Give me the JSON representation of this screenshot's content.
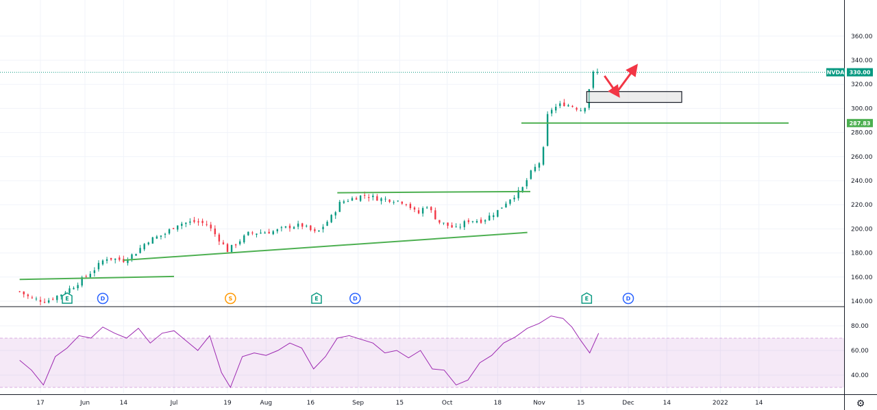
{
  "chart_data": [
    {
      "type": "candlestick",
      "symbol": "NVDA",
      "last_price_label": "330.00",
      "level_label": "287.83",
      "ylim": [
        136,
        390
      ],
      "price_ticks": [
        140,
        160,
        180,
        200,
        220,
        240,
        260,
        280,
        300,
        320,
        340,
        360
      ],
      "price_tick_labels": [
        "140.00",
        "160.00",
        "180.00",
        "200.00",
        "220.00",
        "240.00",
        "260.00",
        "280.00",
        "300.00",
        "320.00",
        "340.00",
        "360.00"
      ],
      "x_labels": [
        "17",
        "Jun",
        "14",
        "Jul",
        "19",
        "Aug",
        "16",
        "Sep",
        "15",
        "Oct",
        "18",
        "Nov",
        "15",
        "Dec",
        "14",
        "2022",
        "14"
      ],
      "close_path": [
        [
          "2021-05-10",
          148
        ],
        [
          "2021-05-14",
          142
        ],
        [
          "2021-05-19",
          140
        ],
        [
          "2021-05-24",
          146
        ],
        [
          "2021-05-28",
          152
        ],
        [
          "2021-06-01",
          160
        ],
        [
          "2021-06-04",
          166
        ],
        [
          "2021-06-08",
          176
        ],
        [
          "2021-06-14",
          174
        ],
        [
          "2021-06-18",
          180
        ],
        [
          "2021-06-22",
          190
        ],
        [
          "2021-06-28",
          196
        ],
        [
          "2021-07-02",
          204
        ],
        [
          "2021-07-08",
          206
        ],
        [
          "2021-07-12",
          204
        ],
        [
          "2021-07-16",
          192
        ],
        [
          "2021-07-19",
          182
        ],
        [
          "2021-07-22",
          188
        ],
        [
          "2021-07-26",
          196
        ],
        [
          "2021-07-30",
          197
        ],
        [
          "2021-08-04",
          198
        ],
        [
          "2021-08-09",
          202
        ],
        [
          "2021-08-13",
          203
        ],
        [
          "2021-08-18",
          196
        ],
        [
          "2021-08-23",
          210
        ],
        [
          "2021-08-26",
          222
        ],
        [
          "2021-08-31",
          226
        ],
        [
          "2021-09-03",
          228
        ],
        [
          "2021-09-08",
          225
        ],
        [
          "2021-09-13",
          224
        ],
        [
          "2021-09-17",
          222
        ],
        [
          "2021-09-21",
          212
        ],
        [
          "2021-09-24",
          220
        ],
        [
          "2021-09-28",
          206
        ],
        [
          "2021-10-04",
          200
        ],
        [
          "2021-10-08",
          207
        ],
        [
          "2021-10-13",
          207
        ],
        [
          "2021-10-18",
          215
        ],
        [
          "2021-10-22",
          225
        ],
        [
          "2021-10-26",
          232
        ],
        [
          "2021-10-29",
          246
        ],
        [
          "2021-11-02",
          258
        ],
        [
          "2021-11-04",
          298
        ],
        [
          "2021-11-09",
          304
        ],
        [
          "2021-11-12",
          302
        ],
        [
          "2021-11-16",
          298
        ],
        [
          "2021-11-19",
          329
        ],
        [
          "2021-11-21",
          330
        ]
      ],
      "trendlines": [
        {
          "from": [
            "2021-05-10",
            158
          ],
          "to": [
            "2021-07-01",
            160.5
          ],
          "color": "#4caf50"
        },
        {
          "from": [
            "2021-06-14",
            174
          ],
          "to": [
            "2021-10-28",
            197
          ],
          "color": "#4caf50"
        },
        {
          "from": [
            "2021-08-25",
            230
          ],
          "to": [
            "2021-10-29",
            231
          ],
          "color": "#4caf50"
        },
        {
          "from": [
            "2021-10-26",
            287.83
          ],
          "to": [
            "2022-01-24",
            287.83
          ],
          "color": "#4caf50"
        }
      ],
      "zone": {
        "from": "2021-11-17",
        "to": "2021-12-19",
        "low": 305,
        "high": 314
      },
      "arrows": [
        {
          "from": [
            "2021-11-23",
            327
          ],
          "to": [
            "2021-11-27",
            313
          ],
          "color": "#f23645"
        },
        {
          "from": [
            "2021-11-27",
            313
          ],
          "to": [
            "2021-12-03",
            333
          ],
          "color": "#f23645"
        }
      ],
      "events": [
        {
          "label": "E",
          "date": "2021-05-26",
          "color": "#089981"
        },
        {
          "label": "D",
          "date": "2021-06-07",
          "color": "#2962ff"
        },
        {
          "label": "S",
          "date": "2021-07-20",
          "color": "#ff9800"
        },
        {
          "label": "E",
          "date": "2021-08-18",
          "color": "#089981"
        },
        {
          "label": "D",
          "date": "2021-08-31",
          "color": "#2962ff"
        },
        {
          "label": "E",
          "date": "2021-11-17",
          "color": "#089981"
        },
        {
          "label": "D",
          "date": "2021-12-01",
          "color": "#2962ff"
        }
      ]
    },
    {
      "type": "line",
      "indicator": "RSI",
      "ylim": [
        25,
        95
      ],
      "y_ticks": [
        40,
        60,
        80
      ],
      "y_tick_labels": [
        "40.00",
        "60.00",
        "80.00"
      ],
      "band": [
        30,
        70
      ],
      "color": "#9c27b0",
      "values": [
        [
          "2021-05-10",
          52
        ],
        [
          "2021-05-14",
          44
        ],
        [
          "2021-05-18",
          32
        ],
        [
          "2021-05-22",
          55
        ],
        [
          "2021-05-26",
          62
        ],
        [
          "2021-05-30",
          72
        ],
        [
          "2021-06-03",
          70
        ],
        [
          "2021-06-07",
          79
        ],
        [
          "2021-06-11",
          74
        ],
        [
          "2021-06-15",
          70
        ],
        [
          "2021-06-19",
          78
        ],
        [
          "2021-06-23",
          66
        ],
        [
          "2021-06-27",
          74
        ],
        [
          "2021-07-01",
          76
        ],
        [
          "2021-07-05",
          68
        ],
        [
          "2021-07-09",
          60
        ],
        [
          "2021-07-13",
          72
        ],
        [
          "2021-07-17",
          42
        ],
        [
          "2021-07-20",
          30
        ],
        [
          "2021-07-24",
          55
        ],
        [
          "2021-07-28",
          58
        ],
        [
          "2021-08-01",
          56
        ],
        [
          "2021-08-05",
          60
        ],
        [
          "2021-08-09",
          66
        ],
        [
          "2021-08-13",
          62
        ],
        [
          "2021-08-17",
          45
        ],
        [
          "2021-08-21",
          55
        ],
        [
          "2021-08-25",
          70
        ],
        [
          "2021-08-29",
          72
        ],
        [
          "2021-09-02",
          69
        ],
        [
          "2021-09-06",
          66
        ],
        [
          "2021-09-10",
          58
        ],
        [
          "2021-09-14",
          60
        ],
        [
          "2021-09-18",
          54
        ],
        [
          "2021-09-22",
          60
        ],
        [
          "2021-09-26",
          45
        ],
        [
          "2021-09-30",
          44
        ],
        [
          "2021-10-04",
          32
        ],
        [
          "2021-10-08",
          36
        ],
        [
          "2021-10-12",
          50
        ],
        [
          "2021-10-16",
          56
        ],
        [
          "2021-10-20",
          66
        ],
        [
          "2021-10-24",
          71
        ],
        [
          "2021-10-28",
          78
        ],
        [
          "2021-11-01",
          82
        ],
        [
          "2021-11-05",
          88
        ],
        [
          "2021-11-09",
          86
        ],
        [
          "2021-11-12",
          79
        ],
        [
          "2021-11-15",
          68
        ],
        [
          "2021-11-18",
          58
        ],
        [
          "2021-11-21",
          74
        ]
      ]
    }
  ]
}
